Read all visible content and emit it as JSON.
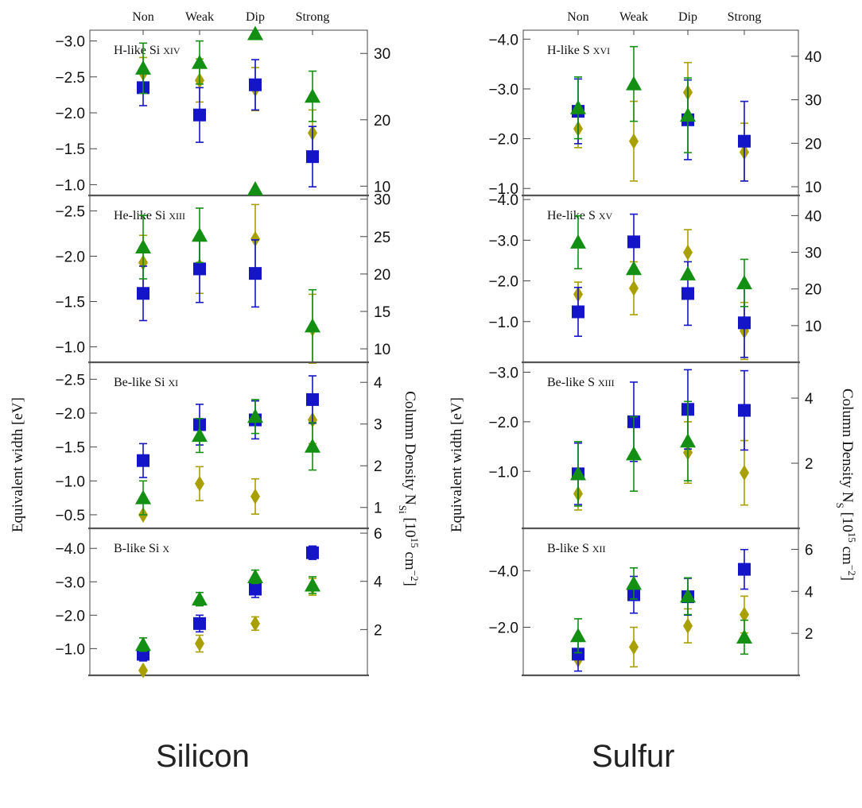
{
  "captions": {
    "left": "Silicon",
    "right": "Sulfur"
  },
  "axis_labels": {
    "left_ylabel": "Equivalent width [eV]",
    "silicon_right_ylabel": "Column Density N_Si [10^15 cm^-2]",
    "sulfur_right_ylabel": "Column Density N_S [10^15 cm^-2]"
  },
  "colors": {
    "blue": "#1414c8",
    "green": "#139013",
    "olive": "#a8a000",
    "frame": "#555555"
  },
  "chart_data": [
    {
      "type": "scatter",
      "element": "Silicon",
      "categories": [
        "Non",
        "Weak",
        "Dip",
        "Strong"
      ],
      "panels": [
        {
          "label": "H-like Si xiv",
          "ylim": [
            -3.15,
            -0.85
          ],
          "yticks": [
            -3.0,
            -2.5,
            -2.0,
            -1.5,
            -1.0
          ],
          "ytick_labels": [
            "−3.0",
            "−2.5",
            "−2.0",
            "−1.5",
            "−1.0"
          ],
          "right_ylim": [
            33.5,
            8.6
          ],
          "right_ticks": [
            30,
            20,
            10
          ],
          "blue": {
            "values": [
              -2.35,
              -1.97,
              -2.39,
              -1.39
            ],
            "err": [
              0.25,
              0.38,
              0.35,
              0.42
            ]
          },
          "green": {
            "values": [
              -2.62,
              -2.7,
              -3.1,
              -2.23
            ],
            "err": [
              0.35,
              0.3,
              0.0,
              0.35
            ]
          },
          "olive": {
            "values": [
              -2.55,
              -2.45,
              -2.33,
              -1.72
            ],
            "err": [
              0.22,
              0.3,
              0.3,
              0.32
            ]
          }
        },
        {
          "label": "He-like Si xiii",
          "ylim": [
            -2.67,
            -0.83
          ],
          "yticks": [
            -2.5,
            -2.0,
            -1.5,
            -1.0
          ],
          "ytick_labels": [
            "−2.5",
            "−2.0",
            "−1.5",
            "−1.0"
          ],
          "right_ylim": [
            30.5,
            8.2
          ],
          "right_ticks": [
            30,
            25,
            20,
            15,
            10
          ],
          "blue": {
            "values": [
              -1.59,
              -1.86,
              -1.81,
              null
            ],
            "err": [
              0.3,
              0.37,
              0.37,
              null
            ]
          },
          "green": {
            "values": [
              -2.1,
              -2.23,
              -2.74,
              -1.23
            ],
            "err": [
              0.35,
              0.3,
              0.0,
              0.4
            ]
          },
          "olive": {
            "values": [
              -1.93,
              -1.89,
              -2.19,
              -1.2
            ],
            "err": [
              0.3,
              0.3,
              0.38,
              0.38
            ]
          }
        },
        {
          "label": "Be-like Si xi",
          "ylim": [
            -2.75,
            -0.3
          ],
          "yticks": [
            -2.5,
            -2.0,
            -1.5,
            -1.0,
            -0.5
          ],
          "ytick_labels": [
            "−2.5",
            "−2.0",
            "−1.5",
            "−1.0",
            "−0.5"
          ],
          "right_ylim": [
            4.48,
            0.5
          ],
          "right_ticks": [
            4,
            3,
            2,
            1
          ],
          "blue": {
            "values": [
              -1.3,
              -1.83,
              -1.9,
              -2.2
            ],
            "err": [
              0.25,
              0.3,
              0.28,
              0.35
            ]
          },
          "green": {
            "values": [
              -0.75,
              -1.67,
              -1.95,
              -1.51
            ],
            "err": [
              0.25,
              0.25,
              0.25,
              0.35
            ]
          },
          "olive": {
            "values": [
              -0.5,
              -0.96,
              -0.77,
              -1.9
            ],
            "err": [
              0.0,
              0.25,
              0.26,
              0.35
            ]
          }
        },
        {
          "label": "B-like Si x",
          "ylim": [
            -4.6,
            -0.2
          ],
          "yticks": [
            -4.0,
            -3.0,
            -2.0,
            -1.0
          ],
          "ytick_labels": [
            "−4.0",
            "−3.0",
            "−2.0",
            "−1.0"
          ],
          "right_ylim": [
            6.2,
            0.1
          ],
          "right_ticks": [
            6,
            4,
            2
          ],
          "blue": {
            "values": [
              -0.83,
              -1.75,
              -2.78,
              -3.87
            ],
            "err": [
              0.2,
              0.25,
              0.25,
              0.2
            ]
          },
          "green": {
            "values": [
              -1.12,
              -2.48,
              -3.15,
              -2.9
            ],
            "err": [
              0.2,
              0.2,
              0.2,
              0.25
            ]
          },
          "olive": {
            "values": [
              -0.35,
              -1.15,
              -1.75,
              -2.85
            ],
            "err": [
              0.0,
              0.25,
              0.2,
              0.25
            ]
          }
        }
      ]
    },
    {
      "type": "scatter",
      "element": "Sulfur",
      "categories": [
        "Non",
        "Weak",
        "Dip",
        "Strong"
      ],
      "panels": [
        {
          "label": "H-like S xvi",
          "ylim": [
            -4.18,
            -0.86
          ],
          "yticks": [
            -4.0,
            -3.0,
            -2.0,
            -1.0
          ],
          "ytick_labels": [
            "−4.0",
            "−3.0",
            "−2.0",
            "−1.0"
          ],
          "right_ylim": [
            46.0,
            8.0
          ],
          "right_ticks": [
            40,
            30,
            20,
            10
          ],
          "blue": {
            "values": [
              -2.55,
              null,
              -2.38,
              -1.95
            ],
            "err": [
              0.65,
              null,
              0.8,
              0.8
            ]
          },
          "green": {
            "values": [
              -2.62,
              -3.1,
              -2.47,
              null
            ],
            "err": [
              0.62,
              0.75,
              0.75,
              null
            ]
          },
          "olive": {
            "values": [
              -2.2,
              -1.95,
              -2.93,
              -1.73
            ],
            "err": [
              0.38,
              0.8,
              0.6,
              0.58
            ]
          }
        },
        {
          "label": "He-like S xv",
          "ylim": [
            -4.1,
            0.0
          ],
          "yticks": [
            -4.0,
            -3.0,
            -2.0,
            -1.0
          ],
          "ytick_labels": [
            "−4.0",
            "−3.0",
            "−2.0",
            "−1.0"
          ],
          "right_ylim": [
            45.5,
            0.0
          ],
          "right_ticks": [
            40,
            30,
            20,
            10
          ],
          "blue": {
            "values": [
              -1.24,
              -2.96,
              -1.69,
              -0.97
            ],
            "err": [
              0.6,
              0.68,
              0.78,
              0.85
            ]
          },
          "green": {
            "values": [
              -2.95,
              -2.3,
              -2.17,
              -1.95
            ],
            "err": [
              0.65,
              0.0,
              0.0,
              0.58
            ]
          },
          "olive": {
            "values": [
              -1.67,
              -1.82,
              -2.7,
              -0.77
            ],
            "err": [
              0.3,
              0.65,
              0.56,
              0.7
            ]
          }
        },
        {
          "label": "Be-like S xiii",
          "ylim": [
            -3.2,
            0.15
          ],
          "yticks": [
            -3.0,
            -2.0,
            -1.0
          ],
          "ytick_labels": [
            "−3.0",
            "−2.0",
            "−1.0"
          ],
          "right_ylim": [
            5.1,
            0.0
          ],
          "right_ticks": [
            4,
            2
          ],
          "blue": {
            "values": [
              -0.95,
              -2.0,
              -2.25,
              -2.23
            ],
            "err": [
              0.62,
              0.8,
              0.8,
              0.8
            ]
          },
          "green": {
            "values": [
              -0.95,
              -1.35,
              -1.61,
              null
            ],
            "err": [
              0.65,
              0.75,
              0.8,
              null
            ]
          },
          "olive": {
            "values": [
              -0.55,
              null,
              -1.38,
              -0.97
            ],
            "err": [
              0.33,
              null,
              0.62,
              0.65
            ]
          }
        },
        {
          "label": "B-like S xii",
          "ylim": [
            -5.5,
            -0.3
          ],
          "yticks": [
            -4.0,
            -2.0
          ],
          "ytick_labels": [
            "−4.0",
            "−2.0"
          ],
          "right_ylim": [
            7.0,
            0.0
          ],
          "right_ticks": [
            6,
            4,
            2
          ],
          "blue": {
            "values": [
              -1.05,
              -3.15,
              -3.08,
              -4.05
            ],
            "err": [
              0.6,
              0.65,
              0.65,
              0.7
            ]
          },
          "green": {
            "values": [
              -1.7,
              -3.55,
              -3.1,
              -1.65
            ],
            "err": [
              0.6,
              0.55,
              0.65,
              0.6
            ]
          },
          "olive": {
            "values": [
              -0.85,
              -1.3,
              -2.05,
              -2.45
            ],
            "err": [
              0.0,
              0.7,
              0.6,
              0.65
            ]
          }
        }
      ]
    }
  ]
}
